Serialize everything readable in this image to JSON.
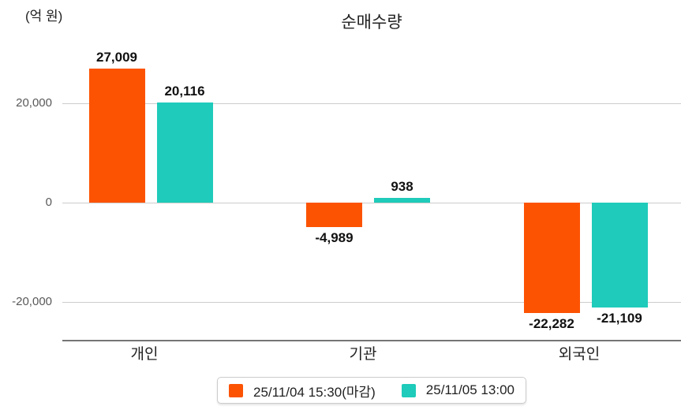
{
  "chart_data": {
    "type": "bar",
    "title": "순매수량",
    "ylabel": "(억 원)",
    "categories": [
      "개인",
      "기관",
      "외국인"
    ],
    "series": [
      {
        "name": "25/11/04 15:30(마감)",
        "color": "#FC5303",
        "values": [
          27009,
          -4989,
          -22282
        ]
      },
      {
        "name": "25/11/05 13:00",
        "color": "#1FCBBA",
        "values": [
          20116,
          938,
          -21109
        ]
      }
    ],
    "yticks": [
      20000,
      0,
      -20000
    ],
    "ylim": [
      -28000,
      31000
    ],
    "grid": "horizontal",
    "legend_position": "bottom",
    "value_labels": true,
    "colors": {
      "gridline": "#CDCDCD",
      "axis": "#757575",
      "tick_text": "#595959",
      "value_text": "#111111"
    }
  }
}
